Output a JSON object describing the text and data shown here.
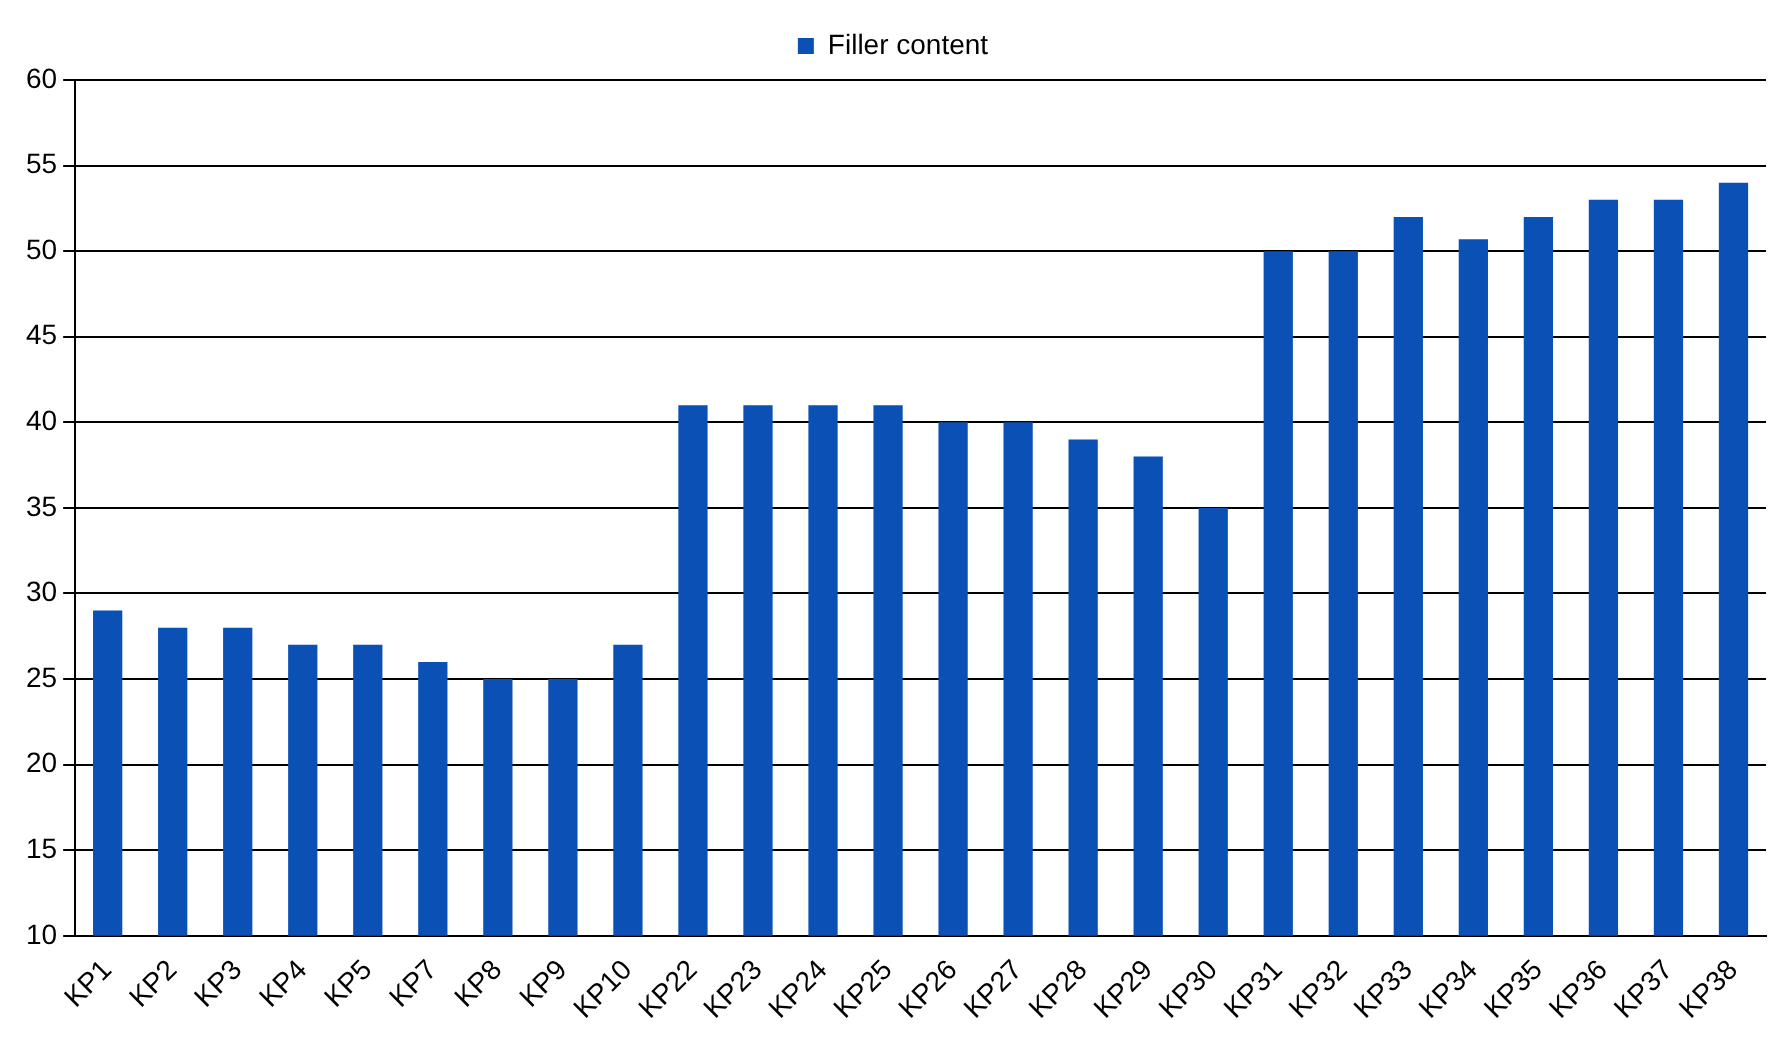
{
  "chart_data": {
    "type": "bar",
    "categories": [
      "KP1",
      "KP2",
      "KP3",
      "KP4",
      "KP5",
      "KP7",
      "KP8",
      "KP9",
      "KP10",
      "KP22",
      "KP23",
      "KP24",
      "KP25",
      "KP26",
      "KP27",
      "KP28",
      "KP29",
      "KP30",
      "KP31",
      "KP32",
      "KP33",
      "KP34",
      "KP35",
      "KP36",
      "KP37",
      "KP38"
    ],
    "series": [
      {
        "name": "Filler content",
        "color": "#0b50b4",
        "values": [
          29,
          28,
          28,
          27,
          27,
          26,
          25,
          25,
          27,
          41,
          41,
          41,
          41,
          40,
          40,
          39,
          38,
          35,
          50,
          50,
          52,
          50.7,
          52,
          53,
          53,
          54
        ]
      }
    ],
    "ylim": [
      10,
      60
    ],
    "yticks": [
      10,
      15,
      20,
      25,
      30,
      35,
      40,
      45,
      50,
      55,
      60
    ],
    "grid": "y",
    "legend": "top"
  }
}
